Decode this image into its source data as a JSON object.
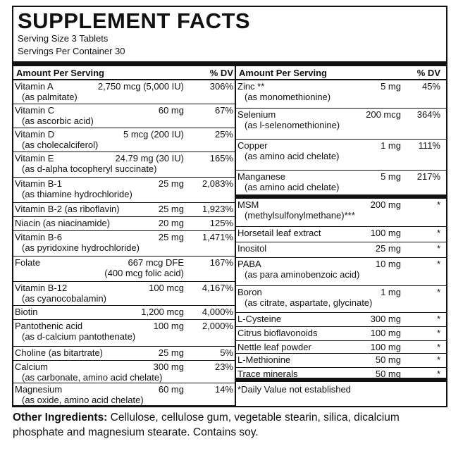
{
  "title": "SUPPLEMENT FACTS",
  "serving_size": "Serving Size 3 Tablets",
  "servings_per_container": "Servings Per Container 30",
  "header": {
    "amount": "Amount Per  Serving",
    "dv": "% DV"
  },
  "left": [
    {
      "name": "Vitamin A",
      "amount": "2,750 mcg (5,000 IU)",
      "dv": "306%",
      "sub": "(as palmitate)"
    },
    {
      "name": "Vitamin C",
      "amount": "60 mg",
      "dv": "67%",
      "sub": "(as ascorbic acid)"
    },
    {
      "name": "Vitamin D",
      "amount": "5 mcg (200 IU)",
      "dv": "25%",
      "sub": "(as cholecalciferol)"
    },
    {
      "name": "Vitamin E",
      "amount": "24.79 mg (30 IU)",
      "dv": "165%",
      "sub": "(as d-alpha tocopheryl succinate)"
    },
    {
      "name": "Vitamin B-1",
      "amount": "25 mg",
      "dv": "2,083%",
      "sub": "(as thiamine hydrochloride)"
    },
    {
      "name": "Vitamin B-2 (as riboflavin)",
      "amount": "25 mg",
      "dv": "1,923%"
    },
    {
      "name": "Niacin (as niacinamide)",
      "amount": "20 mg",
      "dv": "125%"
    },
    {
      "name": "Vitamin B-6",
      "amount": "25 mg",
      "dv": "1,471%",
      "sub": "(as pyridoxine hydrochloride)"
    },
    {
      "name": "Folate",
      "amount": "667 mcg DFE",
      "dv": "167%",
      "amount_sub": "(400 mcg folic acid)"
    },
    {
      "name": "Vitamin B-12",
      "amount": "100 mcg",
      "dv": "4,167%",
      "sub": "(as cyanocobalamin)"
    },
    {
      "name": "Biotin",
      "amount": "1,200 mcg",
      "dv": "4,000%"
    },
    {
      "name": "Pantothenic acid",
      "amount": "100 mg",
      "dv": "2,000%",
      "sub": "(as d-calcium pantothenate)"
    },
    {
      "name": "Choline (as bitartrate)",
      "amount": "25 mg",
      "dv": "5%"
    },
    {
      "name": "Calcium",
      "amount": "300 mg",
      "dv": "23%",
      "sub": "(as carbonate, amino acid chelate)"
    },
    {
      "name": "Magnesium",
      "amount": "60 mg",
      "dv": "14%",
      "sub": "(as oxide, amino acid chelate)"
    }
  ],
  "right": [
    {
      "name": "Zinc **",
      "amount": "5 mg",
      "dv": "45%",
      "sub": "(as monomethionine)"
    },
    {
      "name": "Selenium",
      "amount": "200 mcg",
      "dv": "364%",
      "sub": "(as l-selenomethionine)"
    },
    {
      "name": "Copper",
      "amount": "1 mg",
      "dv": "111%",
      "sub": "(as amino acid chelate)"
    },
    {
      "name": "Manganese",
      "amount": "5 mg",
      "dv": "217%",
      "sub": "(as amino acid chelate)"
    },
    {
      "name": "MSM",
      "amount": "200 mg",
      "dv": "*",
      "sub": "(methylsulfonylmethane)***"
    },
    {
      "name": "Horsetail leaf extract",
      "amount": "100 mg",
      "dv": "*"
    },
    {
      "name": "Inositol",
      "amount": "25 mg",
      "dv": "*"
    },
    {
      "name": "PABA",
      "amount": "10 mg",
      "dv": "*",
      "sub": "(as para aminobenzoic acid)"
    },
    {
      "name": "Boron",
      "amount": "1 mg",
      "dv": "*",
      "sub": "(as citrate, aspartate, glycinate)"
    },
    {
      "name": "L-Cysteine",
      "amount": "300 mg",
      "dv": "*"
    },
    {
      "name": "Citrus bioflavonoids",
      "amount": "100 mg",
      "dv": "*"
    },
    {
      "name": "Nettle leaf powder",
      "amount": "100 mg",
      "dv": "*"
    },
    {
      "name": "L-Methionine",
      "amount": "50 mg",
      "dv": "*"
    },
    {
      "name": "Trace minerals",
      "amount": "50 mg",
      "dv": "*"
    }
  ],
  "footnote": "*Daily Value not established",
  "other_ingredients": {
    "label": "Other Ingredients:",
    "text": " Cellulose, cellulose gum, vegetable stearin, silica, dicalcium phosphate and magnesium stearate. Contains soy."
  }
}
